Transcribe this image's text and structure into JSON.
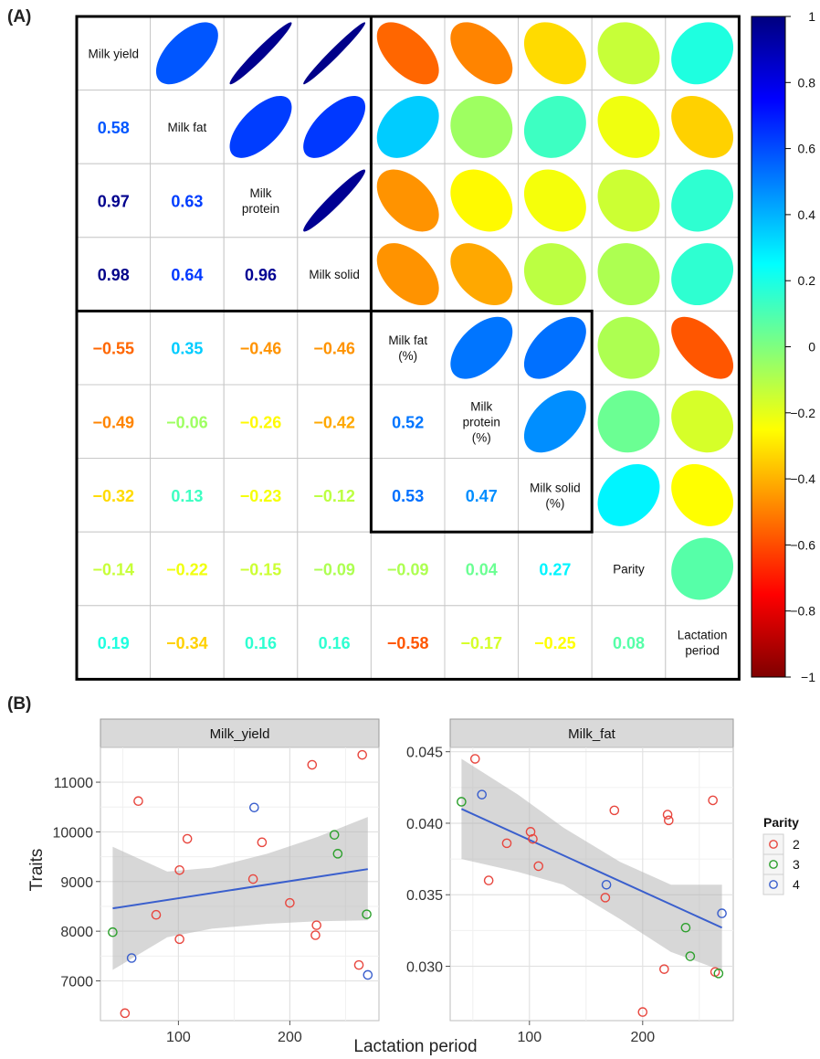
{
  "panel_labels": {
    "a": "(A)",
    "b": "(B)"
  },
  "chart_data": [
    {
      "type": "heatmap",
      "variables": [
        "Milk yield",
        "Milk fat",
        "Milk protein",
        "Milk solid",
        "Milk fat (%)",
        "Milk protein (%)",
        "Milk solid (%)",
        "Parity",
        "Lactation period"
      ],
      "diagonal_labels": [
        [
          "Milk yield"
        ],
        [
          "Milk fat"
        ],
        [
          "Milk",
          "protein"
        ],
        [
          "Milk solid"
        ],
        [
          "Milk fat",
          "(%)"
        ],
        [
          "Milk",
          "protein",
          "(%)"
        ],
        [
          "Milk solid",
          "(%)"
        ],
        [
          "Parity"
        ],
        [
          "Lactation",
          "period"
        ]
      ],
      "correlations": [
        [
          1.0,
          0.58,
          0.97,
          0.98,
          -0.55,
          -0.49,
          -0.32,
          -0.14,
          0.19
        ],
        [
          0.58,
          1.0,
          0.63,
          0.64,
          0.35,
          -0.06,
          0.13,
          -0.22,
          -0.34
        ],
        [
          0.97,
          0.63,
          1.0,
          0.96,
          -0.46,
          -0.26,
          -0.23,
          -0.15,
          0.16
        ],
        [
          0.98,
          0.64,
          0.96,
          1.0,
          -0.46,
          -0.42,
          -0.12,
          -0.09,
          0.16
        ],
        [
          -0.55,
          0.35,
          -0.46,
          -0.46,
          1.0,
          0.52,
          0.53,
          -0.09,
          -0.58
        ],
        [
          -0.49,
          -0.06,
          -0.26,
          -0.42,
          0.52,
          1.0,
          0.47,
          0.04,
          -0.17
        ],
        [
          -0.32,
          0.13,
          -0.23,
          -0.12,
          0.53,
          0.47,
          1.0,
          0.27,
          -0.25
        ],
        [
          -0.14,
          -0.22,
          -0.15,
          -0.09,
          -0.09,
          0.04,
          0.27,
          1.0,
          0.08
        ],
        [
          0.19,
          -0.34,
          0.16,
          0.16,
          -0.58,
          -0.17,
          -0.25,
          0.08,
          1.0
        ]
      ],
      "lower_text": [
        [
          null,
          null,
          null,
          null,
          null,
          null,
          null,
          null,
          null
        ],
        [
          "0.58",
          null,
          null,
          null,
          null,
          null,
          null,
          null,
          null
        ],
        [
          "0.97",
          "0.63",
          null,
          null,
          null,
          null,
          null,
          null,
          null
        ],
        [
          "0.98",
          "0.64",
          "0.96",
          null,
          null,
          null,
          null,
          null,
          null
        ],
        [
          "−0.55",
          "0.35",
          "−0.46",
          "−0.46",
          null,
          null,
          null,
          null,
          null
        ],
        [
          "−0.49",
          "−0.06",
          "−0.26",
          "−0.42",
          "0.52",
          null,
          null,
          null,
          null
        ],
        [
          "−0.32",
          "0.13",
          "−0.23",
          "−0.12",
          "0.53",
          "0.47",
          null,
          null,
          null
        ],
        [
          "−0.14",
          "−0.22",
          "−0.15",
          "−0.09",
          "−0.09",
          "0.04",
          "0.27",
          null,
          null
        ],
        [
          "0.19",
          "−0.34",
          "0.16",
          "0.16",
          "−0.58",
          "−0.17",
          "−0.25",
          "0.08",
          null
        ]
      ],
      "upper_display": "ellipses",
      "lower_display": "numbers",
      "colorbar": {
        "range": [
          -1,
          1
        ],
        "ticks": [
          1,
          0.8,
          0.6,
          0.4,
          0.2,
          0,
          -0.2,
          -0.4,
          -0.6,
          -0.8,
          -1
        ],
        "tick_labels": [
          "1",
          "0.8",
          "0.6",
          "0.4",
          "0.2",
          "0",
          "−0.2",
          "−0.4",
          "−0.6",
          "−0.8",
          "−1"
        ],
        "palette": [
          "#7f0000",
          "#ff0000",
          "#ff7f00",
          "#ffff00",
          "#7fff7f",
          "#00ffff",
          "#007fff",
          "#0000ff",
          "#00007f"
        ]
      },
      "highlight_blocks": [
        [
          0,
          3
        ],
        [
          4,
          6
        ]
      ]
    },
    {
      "type": "scatter",
      "facets": [
        "Milk_yield",
        "Milk_fat"
      ],
      "xlabel": "Lactation period",
      "ylabel": "Traits",
      "xlim": [
        30,
        280
      ],
      "x_ticks": [
        100,
        200
      ],
      "x_tick_labels": [
        "100",
        "200"
      ],
      "legend": {
        "title": "Parity",
        "position": "right",
        "labels": [
          "2",
          "3",
          "4"
        ],
        "colors": [
          "#e8473f",
          "#2ca02c",
          "#3a5fcd"
        ]
      },
      "panels": [
        {
          "facet": "Milk_yield",
          "ylim": [
            6200,
            11700
          ],
          "y_ticks": [
            7000,
            8000,
            9000,
            10000,
            11000
          ],
          "y_tick_labels": [
            "7000",
            "8000",
            "9000",
            "10000",
            "11000"
          ],
          "points": [
            {
              "x": 41,
              "y": 7980,
              "parity": "3"
            },
            {
              "x": 52,
              "y": 6350,
              "parity": "2"
            },
            {
              "x": 58,
              "y": 7460,
              "parity": "4"
            },
            {
              "x": 64,
              "y": 10620,
              "parity": "2"
            },
            {
              "x": 80,
              "y": 8330,
              "parity": "2"
            },
            {
              "x": 101,
              "y": 7840,
              "parity": "2"
            },
            {
              "x": 101,
              "y": 9230,
              "parity": "2"
            },
            {
              "x": 108,
              "y": 9860,
              "parity": "2"
            },
            {
              "x": 167,
              "y": 9050,
              "parity": "2"
            },
            {
              "x": 168,
              "y": 10490,
              "parity": "4"
            },
            {
              "x": 175,
              "y": 9790,
              "parity": "2"
            },
            {
              "x": 200,
              "y": 8570,
              "parity": "2"
            },
            {
              "x": 220,
              "y": 11350,
              "parity": "2"
            },
            {
              "x": 223,
              "y": 7920,
              "parity": "2"
            },
            {
              "x": 224,
              "y": 8120,
              "parity": "2"
            },
            {
              "x": 240,
              "y": 9940,
              "parity": "3"
            },
            {
              "x": 243,
              "y": 9560,
              "parity": "3"
            },
            {
              "x": 262,
              "y": 7320,
              "parity": "2"
            },
            {
              "x": 265,
              "y": 11550,
              "parity": "2"
            },
            {
              "x": 269,
              "y": 8340,
              "parity": "3"
            },
            {
              "x": 270,
              "y": 7120,
              "parity": "4"
            }
          ],
          "fit": {
            "x": [
              41,
              270
            ],
            "y": [
              8460,
              9250
            ]
          },
          "ci_upper": [
            9700,
            9200,
            9280,
            9560,
            9900,
            10300
          ],
          "ci_lower": [
            7220,
            7880,
            8050,
            8150,
            8200,
            8220
          ],
          "ci_x": [
            41,
            90,
            130,
            180,
            225,
            270
          ]
        },
        {
          "facet": "Milk_fat",
          "ylim": [
            0.0262,
            0.0453
          ],
          "y_ticks": [
            0.03,
            0.035,
            0.04,
            0.045
          ],
          "y_tick_labels": [
            "0.030",
            "0.035",
            "0.040",
            "0.045"
          ],
          "points": [
            {
              "x": 40,
              "y": 0.0415,
              "parity": "3"
            },
            {
              "x": 52,
              "y": 0.0445,
              "parity": "2"
            },
            {
              "x": 58,
              "y": 0.042,
              "parity": "4"
            },
            {
              "x": 64,
              "y": 0.036,
              "parity": "2"
            },
            {
              "x": 80,
              "y": 0.0386,
              "parity": "2"
            },
            {
              "x": 101,
              "y": 0.0394,
              "parity": "2"
            },
            {
              "x": 103,
              "y": 0.0389,
              "parity": "2"
            },
            {
              "x": 108,
              "y": 0.037,
              "parity": "2"
            },
            {
              "x": 167,
              "y": 0.0348,
              "parity": "2"
            },
            {
              "x": 168,
              "y": 0.0357,
              "parity": "4"
            },
            {
              "x": 175,
              "y": 0.0409,
              "parity": "2"
            },
            {
              "x": 200,
              "y": 0.0268,
              "parity": "2"
            },
            {
              "x": 219,
              "y": 0.0298,
              "parity": "2"
            },
            {
              "x": 222,
              "y": 0.0406,
              "parity": "2"
            },
            {
              "x": 223,
              "y": 0.0402,
              "parity": "2"
            },
            {
              "x": 238,
              "y": 0.0327,
              "parity": "3"
            },
            {
              "x": 242,
              "y": 0.0307,
              "parity": "3"
            },
            {
              "x": 262,
              "y": 0.0416,
              "parity": "2"
            },
            {
              "x": 264,
              "y": 0.0296,
              "parity": "2"
            },
            {
              "x": 267,
              "y": 0.0295,
              "parity": "3"
            },
            {
              "x": 270,
              "y": 0.0337,
              "parity": "4"
            }
          ],
          "fit": {
            "x": [
              40,
              270
            ],
            "y": [
              0.041,
              0.0327
            ]
          },
          "ci_upper": [
            0.0445,
            0.042,
            0.0397,
            0.0373,
            0.0357,
            0.0357
          ],
          "ci_lower": [
            0.0375,
            0.0366,
            0.0357,
            0.0333,
            0.031,
            0.0297
          ],
          "ci_x": [
            40,
            90,
            130,
            180,
            225,
            270
          ]
        }
      ]
    }
  ]
}
